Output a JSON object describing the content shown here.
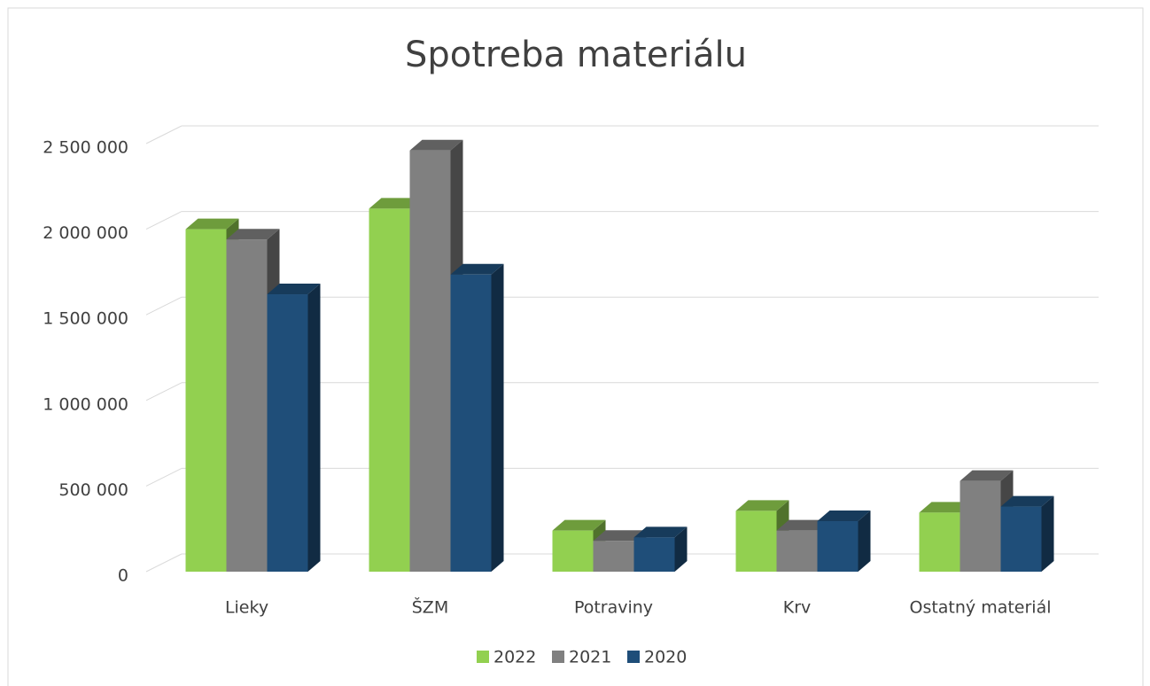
{
  "chart_data": {
    "type": "bar3d",
    "title": "Spotreba materiálu",
    "categories": [
      "Lieky",
      "ŠZM",
      "Potraviny",
      "Krv",
      "Ostatný materiál"
    ],
    "series": [
      {
        "name": "2022",
        "color": "#92d050",
        "values": [
          2000000,
          2120000,
          240000,
          355000,
          345000
        ]
      },
      {
        "name": "2021",
        "color": "#808080",
        "values": [
          1940000,
          2460000,
          180000,
          240000,
          530000
        ]
      },
      {
        "name": "2020",
        "color": "#1f4e79",
        "values": [
          1620000,
          1735000,
          200000,
          295000,
          380000
        ]
      }
    ],
    "ylim": [
      0,
      2500000
    ],
    "yticks": [
      0,
      {
        "value": 500000,
        "label": "500 000"
      },
      {
        "value": 1000000,
        "label": "1 000 000"
      },
      {
        "value": 1500000,
        "label": "1 500 000"
      },
      {
        "value": 2000000,
        "label": "2 000 000"
      },
      {
        "value": 2500000,
        "label": "2 500 000"
      }
    ],
    "grid": true,
    "legend": "bottom"
  }
}
